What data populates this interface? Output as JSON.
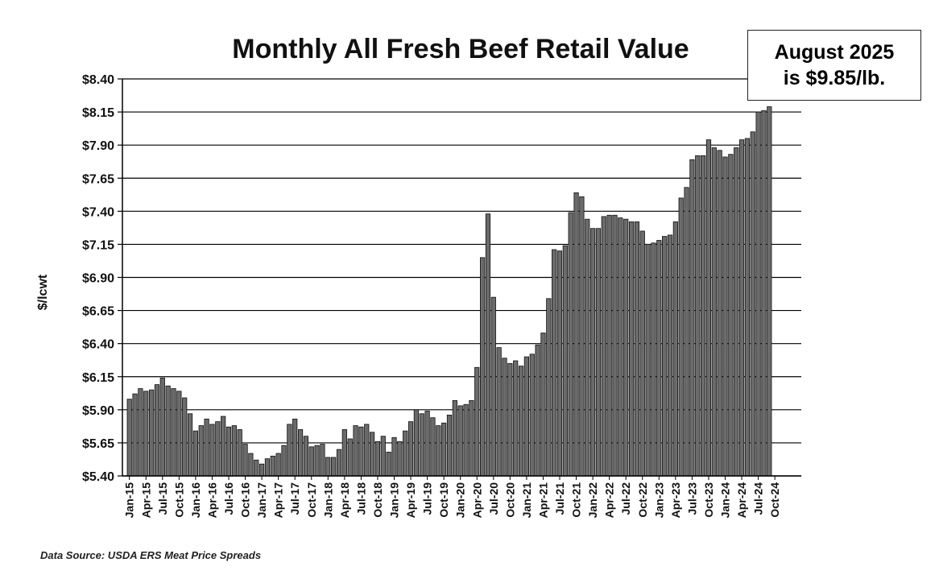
{
  "chart_data": {
    "type": "bar",
    "title": "Monthly All Fresh Beef Retail Value",
    "ylabel": "$/lcwt",
    "xlabel": "",
    "ylim": [
      5.4,
      8.4
    ],
    "yticks": [
      "$8.40",
      "$8.15",
      "$7.90",
      "$7.65",
      "$7.40",
      "$7.15",
      "$6.90",
      "$6.65",
      "$6.40",
      "$6.15",
      "$5.90",
      "$5.65",
      "$5.40"
    ],
    "ytick_values": [
      8.4,
      8.15,
      7.9,
      7.65,
      7.4,
      7.15,
      6.9,
      6.65,
      6.4,
      6.15,
      5.9,
      5.65,
      5.4
    ],
    "grid": "horizontal",
    "xticks": [
      "Jan-15",
      "Apr-15",
      "Jul-15",
      "Oct-15",
      "Jan-16",
      "Apr-16",
      "Jul-16",
      "Oct-16",
      "Jan-17",
      "Apr-17",
      "Jul-17",
      "Oct-17",
      "Jan-18",
      "Apr-18",
      "Jul-18",
      "Oct-18",
      "Jan-19",
      "Apr-19",
      "Jul-19",
      "Oct-19",
      "Jan-20",
      "Apr-20",
      "Jul-20",
      "Oct-20",
      "Jan-21",
      "Apr-21",
      "Jul-21",
      "Oct-21",
      "Jan-22",
      "Apr-22",
      "Jul-22",
      "Oct-22",
      "Jan-23",
      "Apr-23",
      "Jul-23",
      "Oct-23",
      "Jan-24",
      "Apr-24",
      "Jul-24",
      "Oct-24"
    ],
    "bar_color": "#6b6b6b",
    "values": [
      5.98,
      6.02,
      6.06,
      6.04,
      6.05,
      6.09,
      6.14,
      6.08,
      6.06,
      6.04,
      5.99,
      5.87,
      5.74,
      5.78,
      5.83,
      5.79,
      5.81,
      5.85,
      5.77,
      5.78,
      5.75,
      5.64,
      5.57,
      5.52,
      5.49,
      5.53,
      5.55,
      5.57,
      5.63,
      5.79,
      5.83,
      5.75,
      5.7,
      5.62,
      5.63,
      5.64,
      5.54,
      5.54,
      5.6,
      5.75,
      5.68,
      5.78,
      5.77,
      5.79,
      5.73,
      5.66,
      5.7,
      5.58,
      5.69,
      5.66,
      5.74,
      5.81,
      5.9,
      5.87,
      5.89,
      5.84,
      5.78,
      5.8,
      5.86,
      5.97,
      5.93,
      5.94,
      5.97,
      6.22,
      7.05,
      7.38,
      6.75,
      6.37,
      6.29,
      6.25,
      6.27,
      6.23,
      6.3,
      6.32,
      6.39,
      6.48,
      6.74,
      7.11,
      7.1,
      7.14,
      7.39,
      7.54,
      7.51,
      7.34,
      7.27,
      7.27,
      7.36,
      7.37,
      7.37,
      7.35,
      7.34,
      7.32,
      7.32,
      7.25,
      7.15,
      7.16,
      7.18,
      7.21,
      7.22,
      7.32,
      7.5,
      7.58,
      7.79,
      7.82,
      7.82,
      7.94,
      7.88,
      7.86,
      7.81,
      7.83,
      7.88,
      7.94,
      7.95,
      8.0,
      8.15,
      8.16,
      8.19
    ],
    "annotation": {
      "line1": "August 2025",
      "line2": "is $9.85/lb."
    },
    "source": "Data Source: USDA ERS Meat Price Spreads"
  }
}
